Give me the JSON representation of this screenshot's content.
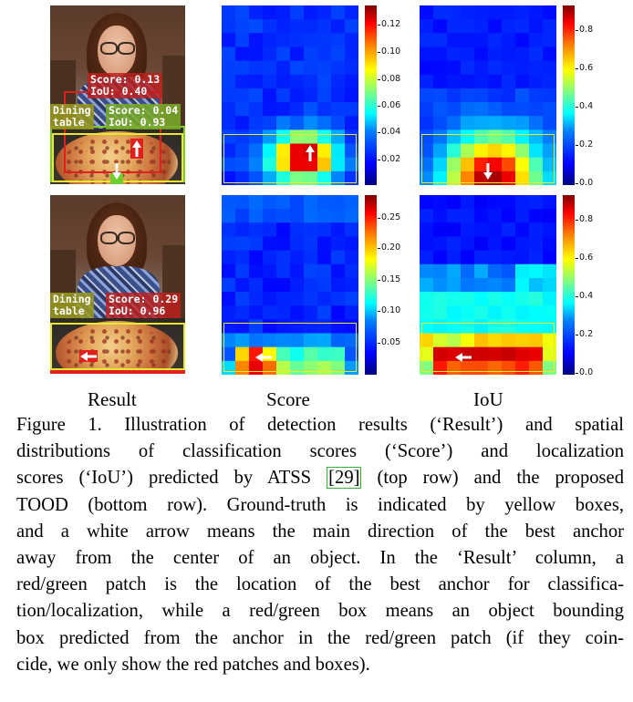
{
  "columns": [
    "Result",
    "Score",
    "IoU"
  ],
  "top_row": {
    "result": {
      "tag_red": "Score: 0.13\nIoU: 0.40",
      "tag_class": "Dining\ntable",
      "tag_green": "Score: 0.04\nIoU: 0.93"
    },
    "score_colorbar": [
      "0.12",
      "0.10",
      "0.08",
      "0.06",
      "0.04",
      "0.02"
    ],
    "iou_colorbar": [
      "0.8",
      "0.6",
      "0.4",
      "0.2",
      "0.0"
    ]
  },
  "bottom_row": {
    "result": {
      "tag_class": "Dining\ntable",
      "tag_red": "Score: 0.29\nIoU: 0.96"
    },
    "score_colorbar": [
      "0.25",
      "0.20",
      "0.15",
      "0.10",
      "0.05"
    ],
    "iou_colorbar": [
      "0.8",
      "0.6",
      "0.4",
      "0.2",
      "0.0"
    ]
  },
  "colors": {
    "gt_box": "#e8e832",
    "red_box": "#e0201c",
    "green_box": "#7ccc2a"
  },
  "caption": {
    "lines": [
      "Figure 1. Illustration of detection results (‘Result’) and spatial",
      "distributions of classification scores (‘Score’) and localization",
      "scores (‘IoU’) predicted by ATSS ",
      "(top row) and the proposed",
      "TOOD (bottom row). Ground-truth is indicated by yellow boxes,",
      "and a white arrow means the main direction of the best anchor",
      "away from the center of an object.  In the ‘Result’ column, a",
      "red/green patch is the location of the best anchor for classifica-",
      "tion/localization, while a red/green box means an object bounding",
      "box predicted from the anchor in the red/green patch (if they coin-",
      "cide, we only show the red patches and boxes)."
    ],
    "cite": "29"
  }
}
